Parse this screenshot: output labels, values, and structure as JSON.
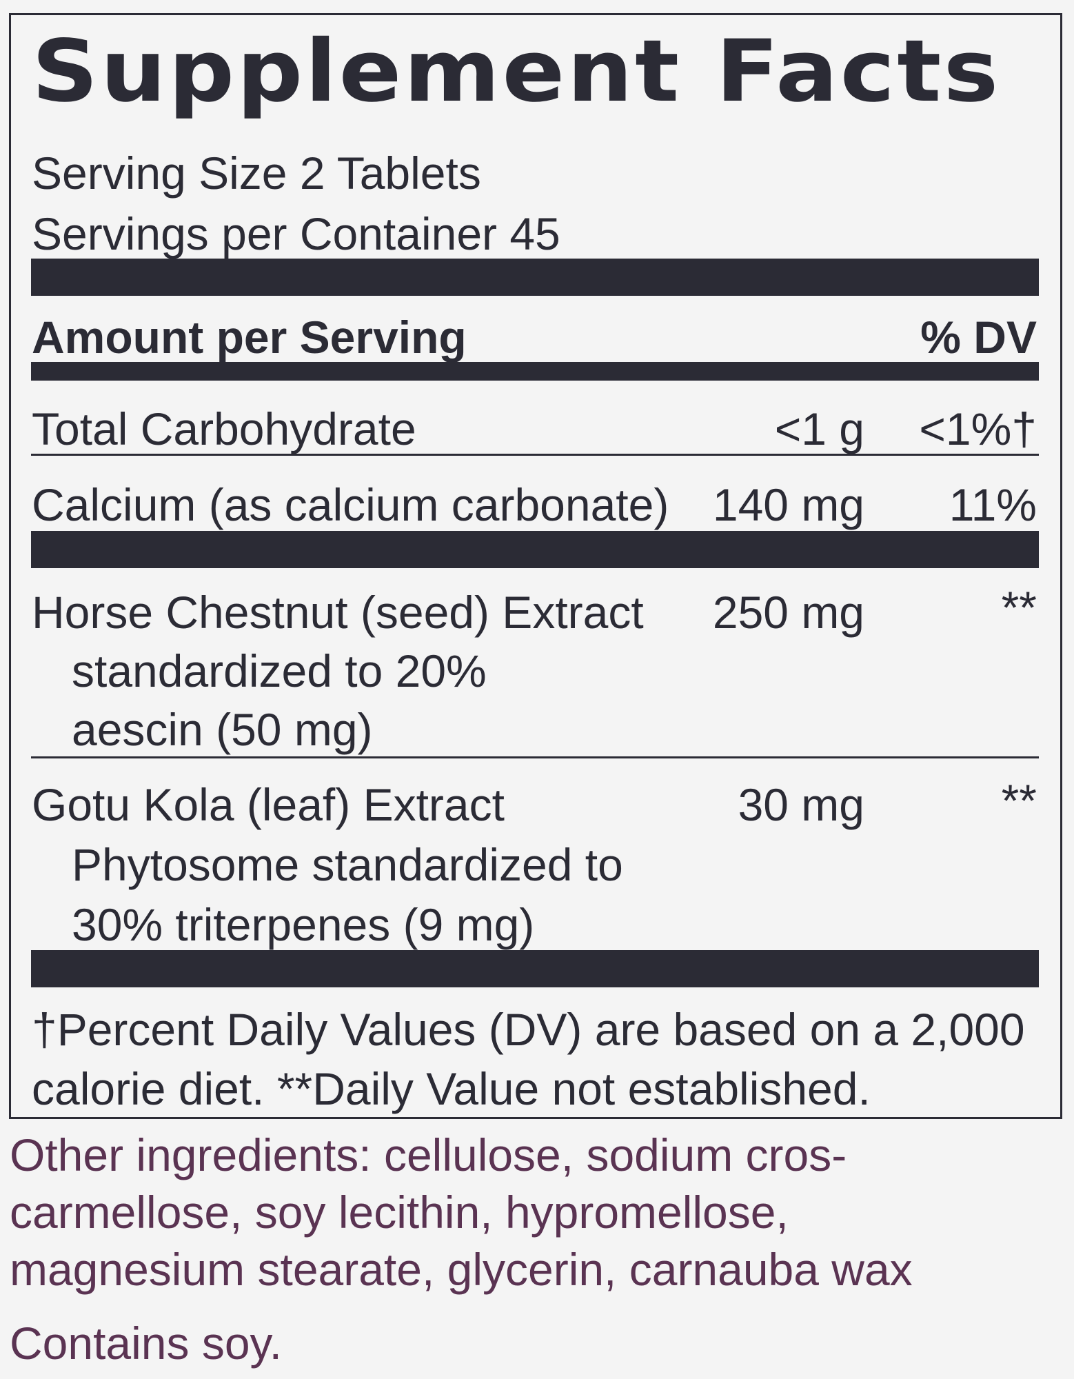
{
  "title": "Supplement Facts",
  "serving_size": "Serving Size 2 Tablets",
  "servings_per_container": "Servings per Container 45",
  "header": {
    "amount_label": "Amount per Serving",
    "dv_label": "% DV"
  },
  "rows": [
    {
      "name_lines": [
        "Total Carbohydrate"
      ],
      "amount": "<1 g",
      "dv": "<1%†"
    },
    {
      "name_lines": [
        "Calcium (as calcium carbonate)"
      ],
      "amount": "140 mg",
      "dv": "11%"
    },
    {
      "name_lines": [
        "Horse Chestnut (seed) Extract",
        "standardized to 20%",
        "aescin (50 mg)"
      ],
      "amount": "250 mg",
      "dv": "**"
    },
    {
      "name_lines": [
        "Gotu Kola (leaf) Extract",
        "Phytosome standardized to",
        "30% triterpenes (9 mg)"
      ],
      "amount": "30 mg",
      "dv": "**"
    }
  ],
  "footnote_lines": [
    "†Percent Daily Values (DV) are based on a 2,000",
    "calorie diet. **Daily Value  not established."
  ],
  "other_ingredients_lines": [
    "Other ingredients: cellulose, sodium cros-",
    "carmellose, soy lecithin, hypromellose,",
    "magnesium stearate, glycerin, carnauba wax"
  ],
  "allergen": "Contains soy.",
  "colors": {
    "text": "#2b2b35",
    "other_ingredients": "#5a3352",
    "background": "#f4f4f4"
  }
}
